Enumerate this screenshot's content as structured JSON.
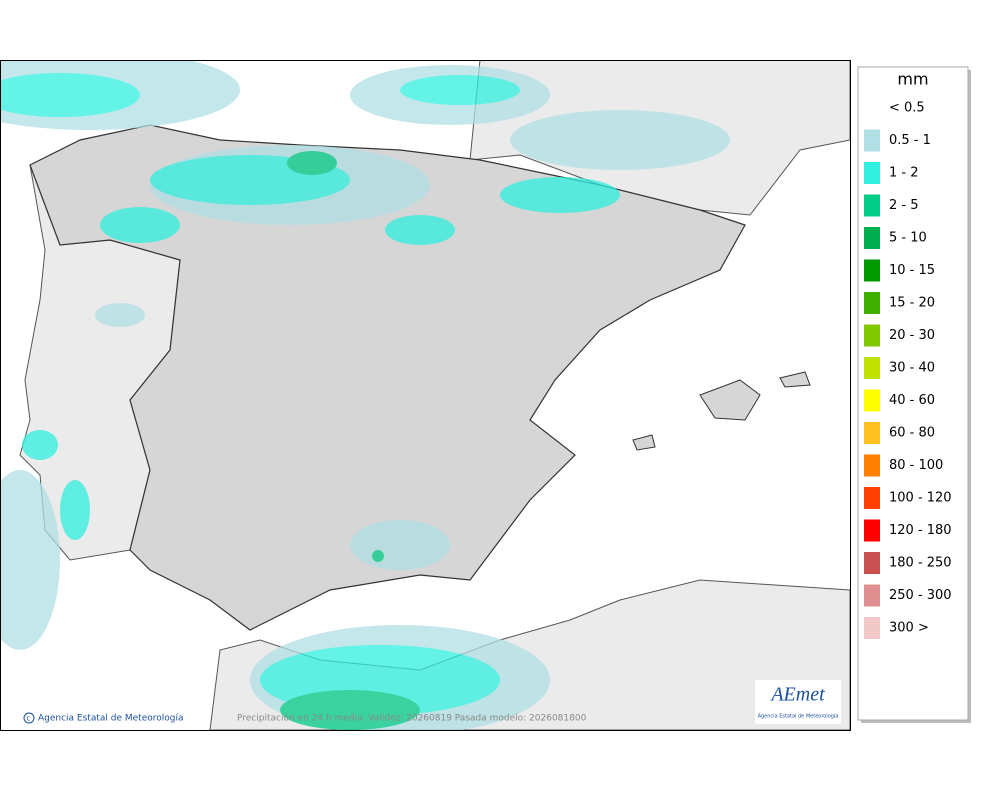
{
  "legend": {
    "title": "mm",
    "items": [
      {
        "label": "< 0.5"
      },
      {
        "label": "0.5 - 1",
        "color": "#b0dfe5"
      },
      {
        "label": "1 - 2",
        "color": "#30efdf"
      },
      {
        "label": "2 - 5",
        "color": "#00cc88"
      },
      {
        "label": "5 - 10",
        "color": "#00b050"
      },
      {
        "label": "10 - 15",
        "color": "#009a00"
      },
      {
        "label": "15 - 20",
        "color": "#40b000"
      },
      {
        "label": "20 - 30",
        "color": "#80c800"
      },
      {
        "label": "30 - 40",
        "color": "#c0e000"
      },
      {
        "label": "40 - 60",
        "color": "#ffff00"
      },
      {
        "label": "60 - 80",
        "color": "#ffc020"
      },
      {
        "label": "80 - 100",
        "color": "#ff8000"
      },
      {
        "label": "100 - 120",
        "color": "#ff4000"
      },
      {
        "label": "120 - 180",
        "color": "#ff0000"
      },
      {
        "label": "180 - 250",
        "color": "#c85050"
      },
      {
        "label": "250 - 300",
        "color": "#e09090"
      },
      {
        "label": "300 >",
        "color": "#f0c8c8"
      }
    ]
  },
  "footer": {
    "credit": "Agencia Estatal de Meteorología",
    "caption": "Precipitación en 24 h media. Validez: 20260819 Pasada modelo: 2026081800"
  },
  "logo": {
    "text": "AEmet",
    "subtitle": "Agencia Estatal de Meteorología"
  }
}
